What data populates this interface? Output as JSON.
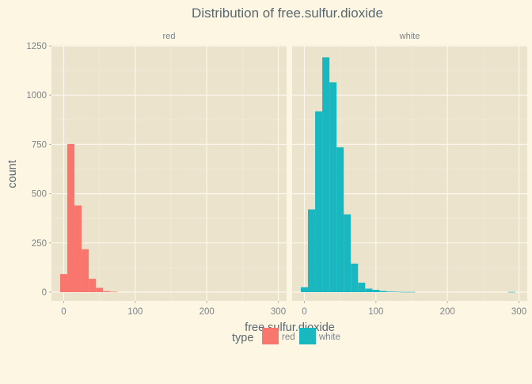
{
  "chart_data": {
    "type": "bar",
    "title": "Distribution of  free.sulfur.dioxide",
    "xlabel": "free.sulfur.dioxide",
    "ylabel": "count",
    "xlim": [
      -15,
      303
    ],
    "ylim": [
      0,
      1250
    ],
    "xticks": [
      0,
      100,
      200,
      300
    ],
    "yticks": [
      0,
      250,
      500,
      750,
      1000,
      1250
    ],
    "bin_width": 10,
    "grid": true,
    "legend": {
      "title": "type",
      "placement": "bottom"
    },
    "panels": [
      {
        "name": "red",
        "color": "#f8766d",
        "bins": [
          {
            "x": 0,
            "count": 92
          },
          {
            "x": 10,
            "count": 752
          },
          {
            "x": 20,
            "count": 440
          },
          {
            "x": 30,
            "count": 218
          },
          {
            "x": 40,
            "count": 68
          },
          {
            "x": 50,
            "count": 22
          },
          {
            "x": 60,
            "count": 5
          },
          {
            "x": 70,
            "count": 2
          }
        ]
      },
      {
        "name": "white",
        "color": "#19b8c0",
        "bins": [
          {
            "x": 0,
            "count": 25
          },
          {
            "x": 10,
            "count": 420
          },
          {
            "x": 20,
            "count": 918
          },
          {
            "x": 30,
            "count": 1192
          },
          {
            "x": 40,
            "count": 1065
          },
          {
            "x": 50,
            "count": 735
          },
          {
            "x": 60,
            "count": 395
          },
          {
            "x": 70,
            "count": 145
          },
          {
            "x": 80,
            "count": 48
          },
          {
            "x": 90,
            "count": 18
          },
          {
            "x": 100,
            "count": 12
          },
          {
            "x": 110,
            "count": 6
          },
          {
            "x": 120,
            "count": 3
          },
          {
            "x": 130,
            "count": 2
          },
          {
            "x": 140,
            "count": 1
          },
          {
            "x": 150,
            "count": 1
          },
          {
            "x": 290,
            "count": 1
          }
        ]
      }
    ]
  }
}
